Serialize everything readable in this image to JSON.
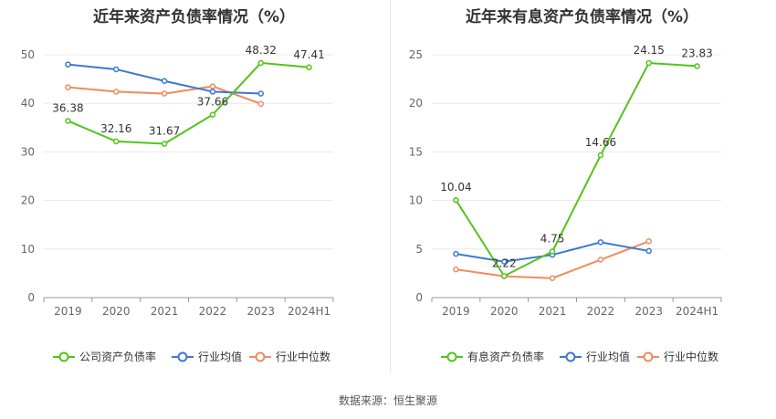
{
  "source_text": "数据来源：恒生聚源",
  "chart_data": [
    {
      "type": "line",
      "title": "近年来资产负债率情况（%）",
      "xlabel": "",
      "ylabel": "",
      "categories": [
        "2019",
        "2020",
        "2021",
        "2022",
        "2023",
        "2024H1"
      ],
      "ylim": [
        0,
        50
      ],
      "yticks": [
        0,
        10,
        20,
        30,
        40,
        50
      ],
      "grid": true,
      "legend_position": "bottom",
      "series": [
        {
          "name": "公司资产负债率",
          "color": "#52c41a",
          "values": [
            36.38,
            32.16,
            31.67,
            37.66,
            48.32,
            47.41
          ],
          "labels": [
            "36.38",
            "32.16",
            "31.67",
            "37.66",
            "48.32",
            "47.41"
          ]
        },
        {
          "name": "行业均值",
          "color": "#3a78d4",
          "values": [
            48.0,
            47.0,
            44.6,
            42.4,
            42.0,
            null
          ],
          "labels": []
        },
        {
          "name": "行业中位数",
          "color": "#f08b5d",
          "values": [
            43.3,
            42.4,
            42.0,
            43.5,
            39.9,
            null
          ],
          "labels": []
        }
      ]
    },
    {
      "type": "line",
      "title": "近年来有息资产负债率情况（%）",
      "xlabel": "",
      "ylabel": "",
      "categories": [
        "2019",
        "2020",
        "2021",
        "2022",
        "2023",
        "2024H1"
      ],
      "ylim": [
        0,
        25
      ],
      "yticks": [
        0,
        5,
        10,
        15,
        20,
        25
      ],
      "grid": true,
      "legend_position": "bottom",
      "series": [
        {
          "name": "有息资产负债率",
          "color": "#52c41a",
          "values": [
            10.04,
            2.22,
            4.75,
            14.66,
            24.15,
            23.83
          ],
          "labels": [
            "10.04",
            "2.22",
            "4.75",
            "14.66",
            "24.15",
            "23.83"
          ]
        },
        {
          "name": "行业均值",
          "color": "#3a78d4",
          "values": [
            4.5,
            3.7,
            4.4,
            5.7,
            4.8,
            null
          ],
          "labels": []
        },
        {
          "name": "行业中位数",
          "color": "#f08b5d",
          "values": [
            2.9,
            2.2,
            2.0,
            3.9,
            5.8,
            null
          ],
          "labels": []
        }
      ]
    }
  ]
}
